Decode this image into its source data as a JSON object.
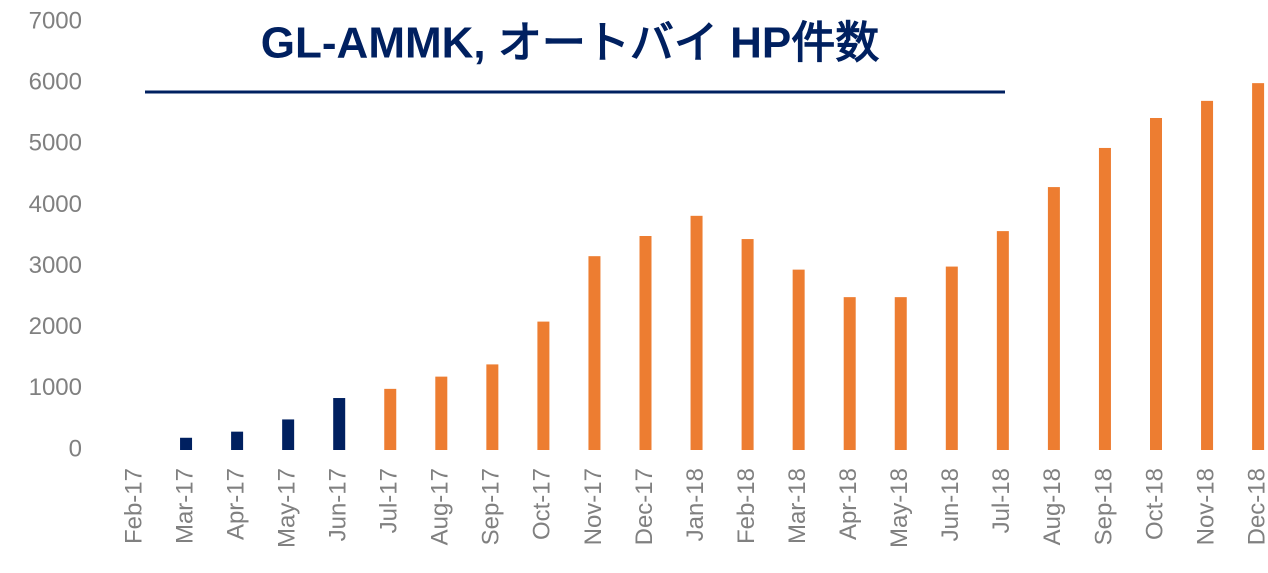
{
  "chart_data": {
    "type": "bar",
    "title": "GL-AMMK, オートバイ HP件数",
    "categories": [
      "Feb-17",
      "Mar-17",
      "Apr-17",
      "May-17",
      "Jun-17",
      "Jul-17",
      "Aug-17",
      "Sep-17",
      "Oct-17",
      "Nov-17",
      "Dec-17",
      "Jan-18",
      "Feb-18",
      "Mar-18",
      "Apr-18",
      "May-18",
      "Jun-18",
      "Jul-18",
      "Aug-18",
      "Sep-18",
      "Oct-18",
      "Nov-18",
      "Dec-18"
    ],
    "values": [
      0,
      200,
      300,
      500,
      850,
      1000,
      1200,
      1400,
      2100,
      3170,
      3500,
      3830,
      3450,
      2950,
      2500,
      2500,
      3000,
      3580,
      4300,
      4940,
      5430,
      5710,
      6000
    ],
    "colors": [
      "#002060",
      "#002060",
      "#002060",
      "#002060",
      "#002060",
      "#ed7d31",
      "#ed7d31",
      "#ed7d31",
      "#ed7d31",
      "#ed7d31",
      "#ed7d31",
      "#ed7d31",
      "#ed7d31",
      "#ed7d31",
      "#ed7d31",
      "#ed7d31",
      "#ed7d31",
      "#ed7d31",
      "#ed7d31",
      "#ed7d31",
      "#ed7d31",
      "#ed7d31",
      "#ed7d31"
    ],
    "ylim": [
      0,
      7000
    ],
    "yticks": [
      0,
      1000,
      2000,
      3000,
      4000,
      5000,
      6000,
      7000
    ],
    "grid": false
  }
}
